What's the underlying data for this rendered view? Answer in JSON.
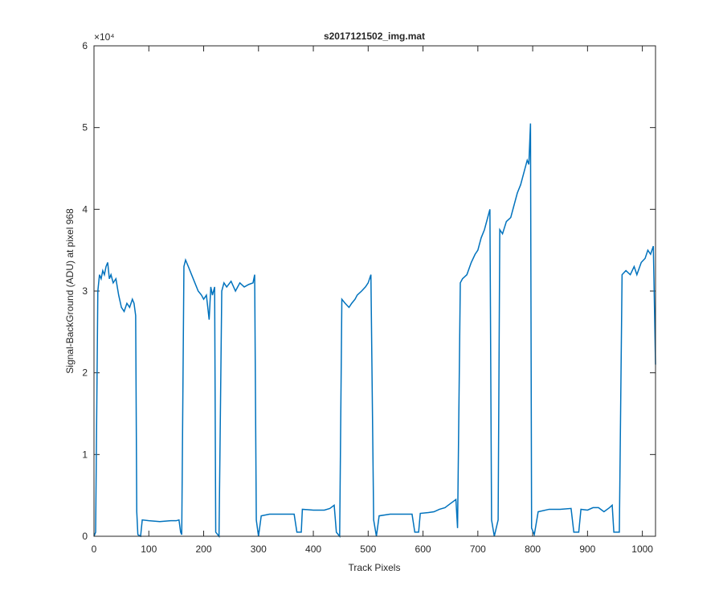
{
  "chart_data": {
    "type": "line",
    "title": "s2017121502_img.mat",
    "x_label": "Track Pixels",
    "y_label": "Signal-BackGround (ADU) at pixel 968",
    "y_multiplier": "×10⁴",
    "xlim": [
      0,
      1024
    ],
    "ylim": [
      0,
      6
    ],
    "xticks": [
      0,
      100,
      200,
      300,
      400,
      500,
      600,
      700,
      800,
      900,
      1000
    ],
    "yticks": [
      0,
      1,
      2,
      3,
      4,
      5,
      6
    ],
    "grid": false,
    "x": [
      0,
      3,
      7,
      10,
      13,
      16,
      19,
      22,
      25,
      28,
      31,
      35,
      40,
      45,
      50,
      55,
      60,
      65,
      70,
      73,
      76,
      78,
      80,
      85,
      88,
      100,
      120,
      140,
      150,
      155,
      158,
      160,
      164,
      167,
      172,
      178,
      184,
      190,
      196,
      200,
      205,
      210,
      213,
      216,
      220,
      222,
      228,
      233,
      237,
      242,
      250,
      258,
      266,
      274,
      282,
      290,
      293,
      296,
      300,
      305,
      320,
      340,
      365,
      370,
      378,
      380,
      400,
      420,
      430,
      438,
      442,
      448,
      452,
      458,
      465,
      470,
      476,
      480,
      488,
      495,
      500,
      505,
      510,
      515,
      520,
      540,
      560,
      580,
      585,
      592,
      595,
      610,
      620,
      630,
      640,
      650,
      660,
      663,
      668,
      672,
      680,
      688,
      695,
      700,
      706,
      712,
      718,
      722,
      725,
      730,
      737,
      740,
      745,
      752,
      760,
      766,
      772,
      778,
      784,
      790,
      793,
      796,
      798,
      803,
      810,
      830,
      850,
      870,
      875,
      884,
      888,
      900,
      910,
      920,
      930,
      940,
      945,
      948,
      958,
      963,
      970,
      978,
      985,
      990,
      998,
      1005,
      1010,
      1015,
      1020,
      1024
    ],
    "values": [
      0.0,
      0.05,
      3.0,
      3.2,
      3.15,
      3.25,
      3.2,
      3.3,
      3.35,
      3.15,
      3.2,
      3.1,
      3.15,
      2.95,
      2.8,
      2.75,
      2.85,
      2.8,
      2.9,
      2.85,
      2.7,
      0.3,
      0.02,
      0.0,
      0.2,
      0.19,
      0.18,
      0.19,
      0.19,
      0.2,
      0.05,
      0.02,
      3.3,
      3.38,
      3.3,
      3.2,
      3.1,
      3.0,
      2.95,
      2.9,
      2.95,
      2.65,
      3.05,
      2.95,
      3.05,
      0.05,
      0.0,
      3.0,
      3.1,
      3.05,
      3.12,
      3.0,
      3.1,
      3.05,
      3.08,
      3.1,
      3.2,
      0.2,
      0.0,
      0.25,
      0.27,
      0.27,
      0.27,
      0.05,
      0.05,
      0.33,
      0.32,
      0.32,
      0.34,
      0.38,
      0.05,
      0.0,
      2.9,
      2.85,
      2.8,
      2.85,
      2.9,
      2.95,
      3.0,
      3.05,
      3.1,
      3.2,
      0.2,
      0.0,
      0.25,
      0.27,
      0.27,
      0.27,
      0.05,
      0.05,
      0.28,
      0.29,
      0.3,
      0.33,
      0.35,
      0.4,
      0.45,
      0.1,
      3.1,
      3.15,
      3.2,
      3.35,
      3.45,
      3.5,
      3.65,
      3.75,
      3.9,
      4.0,
      0.2,
      0.0,
      0.2,
      3.75,
      3.7,
      3.85,
      3.9,
      4.05,
      4.2,
      4.3,
      4.45,
      4.6,
      4.55,
      5.05,
      0.1,
      0.02,
      0.3,
      0.33,
      0.33,
      0.34,
      0.05,
      0.05,
      0.33,
      0.32,
      0.35,
      0.35,
      0.3,
      0.35,
      0.38,
      0.05,
      0.05,
      3.2,
      3.25,
      3.2,
      3.3,
      3.2,
      3.35,
      3.4,
      3.5,
      3.45,
      3.55,
      2.1
    ],
    "color": "#0072bd"
  }
}
